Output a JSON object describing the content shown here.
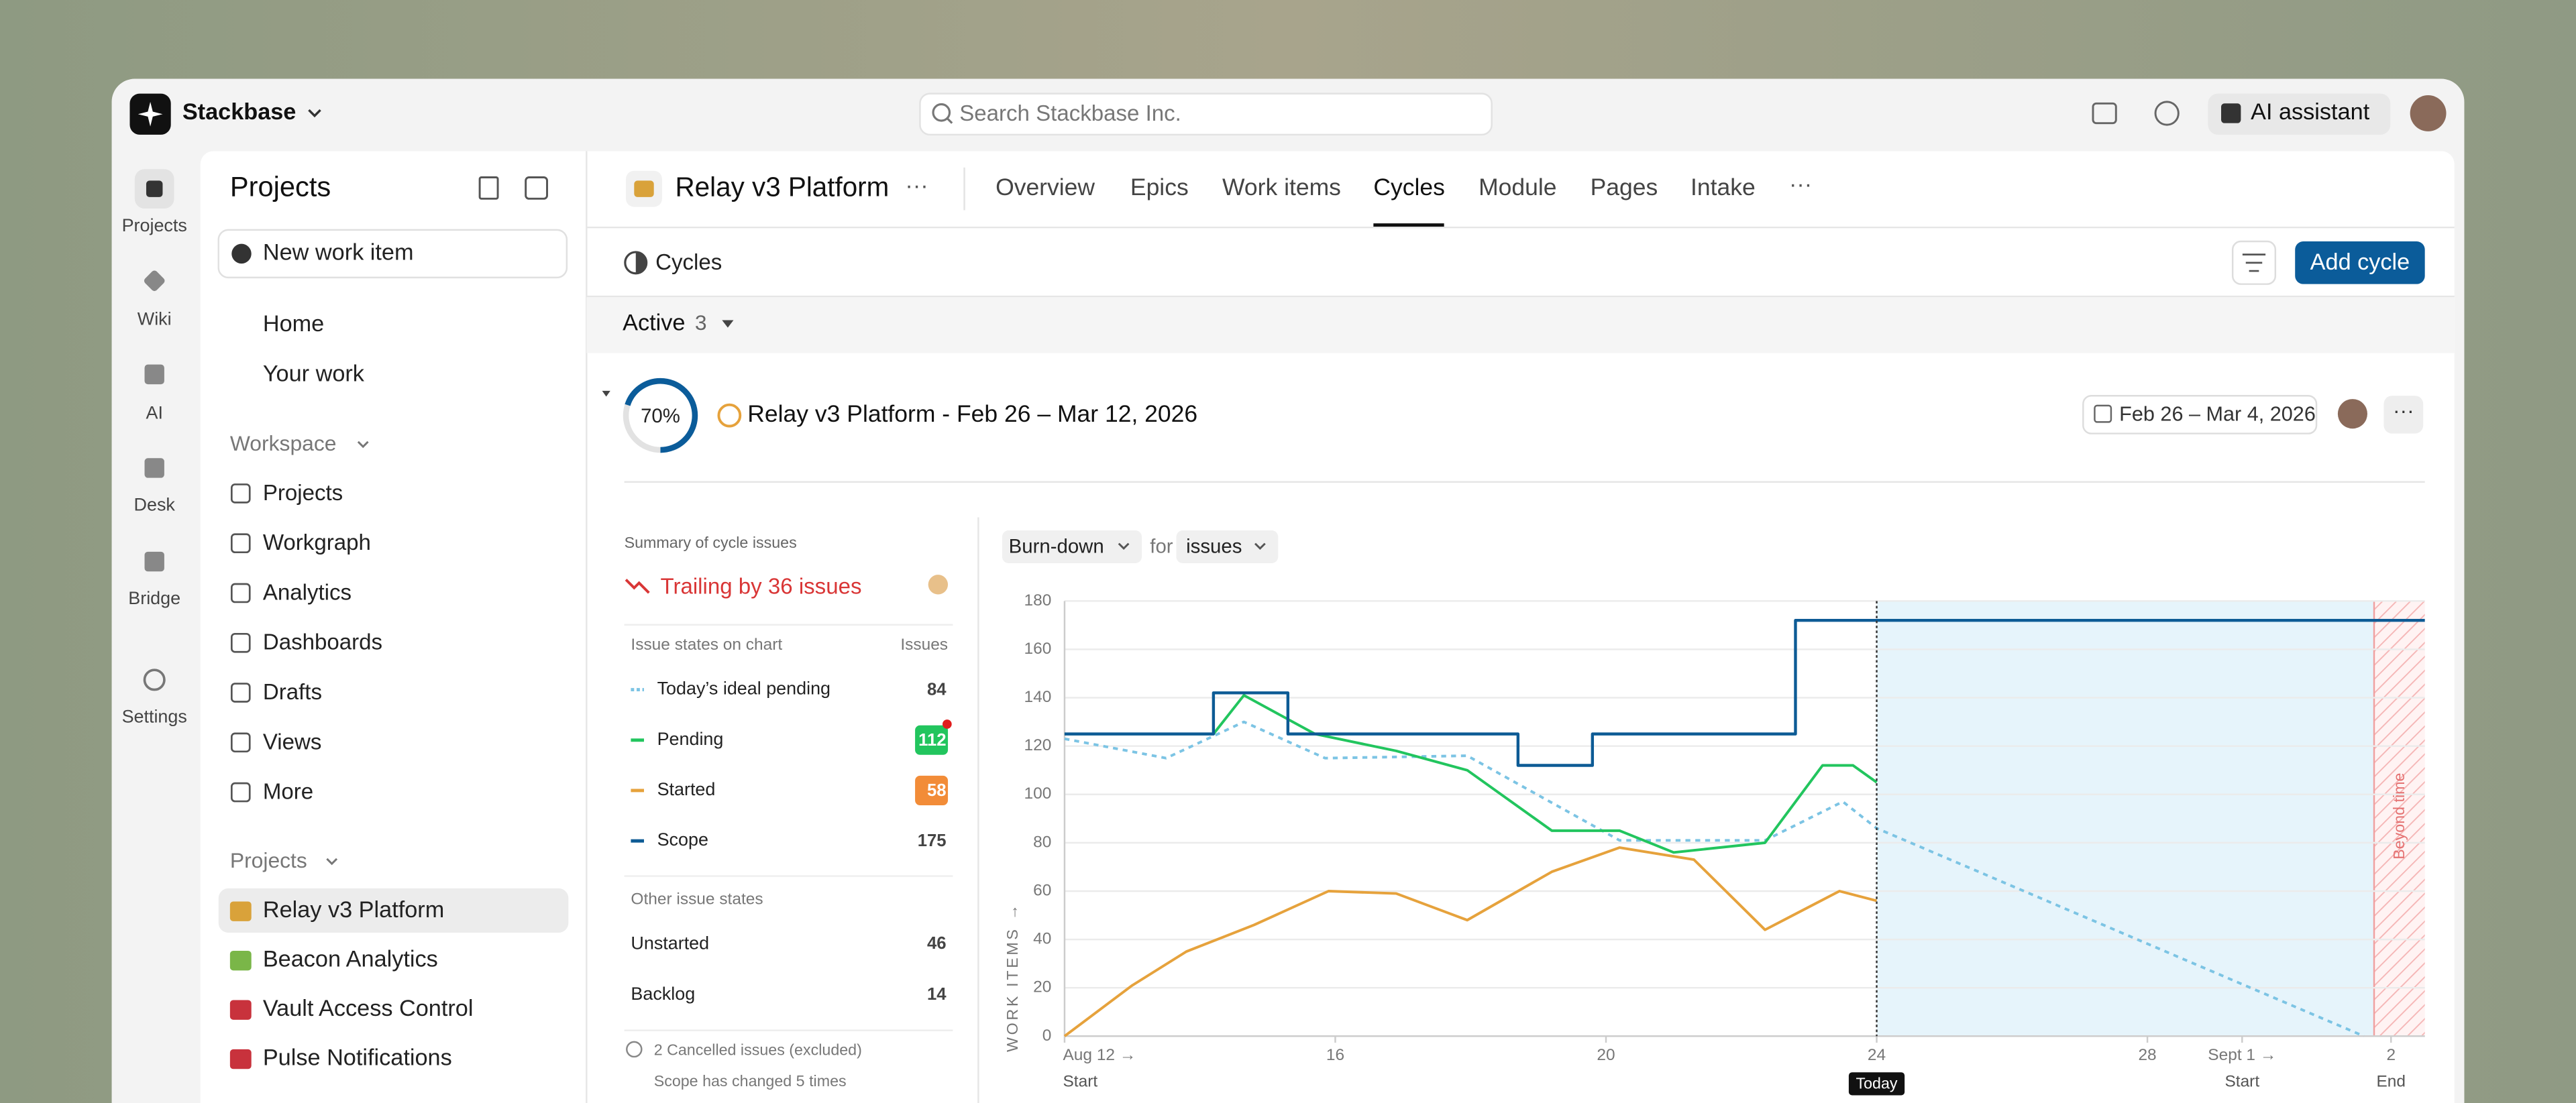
{
  "app": {
    "workspace": "Stackbase",
    "search_placeholder": "Search Stackbase Inc.",
    "ai_button": "AI assistant"
  },
  "rail": [
    "Projects",
    "Wiki",
    "AI",
    "Desk",
    "Bridge",
    "Settings"
  ],
  "sidebar": {
    "title": "Projects",
    "new_item": "New work item",
    "top_items": [
      "Home",
      "Your work"
    ],
    "workspace_heading": "Workspace",
    "workspace_items": [
      "Projects",
      "Workgraph",
      "Analytics",
      "Dashboards",
      "Drafts",
      "Views",
      "More"
    ],
    "projects_heading": "Projects",
    "projects": [
      "Relay v3 Platform",
      "Beacon Analytics",
      "Vault Access Control",
      "Pulse Notifications"
    ]
  },
  "header": {
    "project": "Relay v3 Platform",
    "tabs": [
      "Overview",
      "Epics",
      "Work items",
      "Cycles",
      "Module",
      "Pages",
      "Intake"
    ],
    "active_tab": 3
  },
  "toolbar": {
    "title": "Cycles",
    "add_button": "Add cycle"
  },
  "active_group": {
    "label": "Active",
    "count": 3
  },
  "cycle": {
    "progress": 70,
    "progress_label": "70%",
    "name": "Relay v3 Platform - Feb 26 – Mar 12, 2026",
    "date_range": "Feb 26 – Mar 4, 2026"
  },
  "summary": {
    "heading": "Summary of cycle issues",
    "status": "Trailing by 36 issues",
    "chart_states_heading": "Issue states on chart",
    "issues_heading": "Issues",
    "chart_state_counts": [
      84,
      112,
      58,
      175
    ],
    "other_heading": "Other issue states",
    "other_states": [
      {
        "name": "Unstarted",
        "count": 46
      },
      {
        "name": "Backlog",
        "count": 14
      }
    ],
    "notes": [
      "2 Cancelled issues (excluded)",
      "Scope has changed 5 times"
    ]
  },
  "chart_controls": {
    "mode": "Burn-down",
    "joiner": "for",
    "unit": "issues"
  },
  "chart_data": {
    "type": "line",
    "y_label": "WORK ITEMS →",
    "xlim": [
      0,
      20.1
    ],
    "ylim": [
      0,
      180
    ],
    "yticks": [
      0,
      20,
      40,
      60,
      80,
      100,
      120,
      140,
      160,
      180
    ],
    "xticks": [
      {
        "value": 0,
        "label": "Aug 12 →"
      },
      {
        "value": 4,
        "label": "16"
      },
      {
        "value": 8,
        "label": "20"
      },
      {
        "value": 12,
        "label": "24"
      },
      {
        "value": 16,
        "label": "28"
      },
      {
        "value": 17.4,
        "label": "Sept 1 →"
      },
      {
        "value": 19.6,
        "label": "2"
      }
    ],
    "grid": true,
    "series": [
      {
        "name": "Today’s ideal pending",
        "color": "#7cc4e4",
        "style": "dashed",
        "x": [
          0,
          1.5,
          2.65,
          3.85,
          5.95,
          8.2,
          10.35,
          11.5,
          12,
          19.2
        ],
        "values": [
          123,
          115,
          130,
          115,
          116,
          81,
          81,
          97,
          86,
          0
        ]
      },
      {
        "name": "Pending",
        "color": "#22c55e",
        "style": "solid",
        "x": [
          0,
          2.2,
          2.65,
          3.7,
          4.9,
          5.95,
          7.2,
          8.2,
          9,
          10.35,
          11.2,
          11.65,
          12
        ],
        "values": [
          125,
          125,
          141,
          125,
          118,
          110,
          85,
          85,
          76,
          80,
          112,
          112,
          105
        ]
      },
      {
        "name": "Started",
        "color": "#e6a23c",
        "style": "solid",
        "x": [
          0,
          1,
          1.8,
          2.8,
          3.9,
          4.9,
          5.95,
          7.2,
          8.2,
          9.3,
          10.35,
          11.45,
          12
        ],
        "values": [
          0,
          21,
          35,
          46,
          60,
          59,
          48,
          68,
          78,
          73,
          44,
          60,
          56
        ]
      },
      {
        "name": "Scope",
        "color": "#0d5b95",
        "style": "step",
        "x": [
          0,
          2.2,
          3.3,
          6.7,
          7.8,
          10.8,
          20.1
        ],
        "values": [
          125,
          142,
          125,
          112,
          125,
          172,
          172
        ]
      }
    ],
    "today": {
      "x": 12,
      "label": "Today"
    },
    "beyond": {
      "x": 19.35,
      "label": "Beyond time"
    },
    "markers": [
      {
        "x": 0,
        "label": "Start"
      },
      {
        "x": 17.4,
        "label": "Start"
      },
      {
        "x": 19.6,
        "label": "End"
      }
    ]
  }
}
